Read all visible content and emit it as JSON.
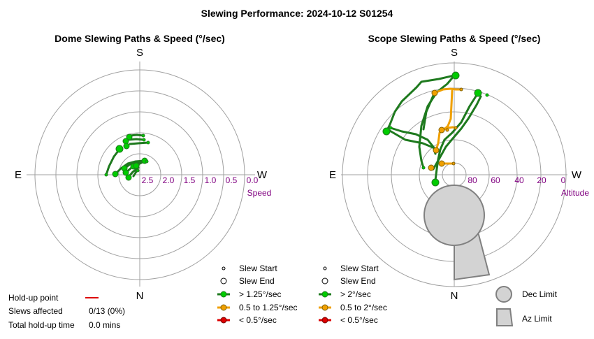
{
  "title": "Slewing Performance: 2024-10-12 S01254",
  "colors": {
    "ring": "#a0a0a0",
    "axis": "#a0a0a0",
    "fast": "#00cc00",
    "fast_line": "#1e7a1e",
    "medium": "#f0a000",
    "slow": "#dd0000",
    "scale": "#800080",
    "limit_fill": "#d3d3d3",
    "limit_stroke": "#808080"
  },
  "dome": {
    "title": "Dome Slewing Paths & Speed (°/sec)",
    "dir_top": "S",
    "dir_left": "E",
    "dir_right": "W",
    "dir_bottom": "N",
    "scale_labels": [
      "2.5",
      "2.0",
      "1.5",
      "1.0",
      "0.5",
      "0.0"
    ],
    "scale_title": "Speed",
    "legend": {
      "start": "Slew Start",
      "end": "Slew End",
      "fast": "> 1.25°/sec",
      "medium": "0.5 to 1.25°/sec",
      "slow": "< 0.5°/sec"
    }
  },
  "scope": {
    "title": "Scope Slewing Paths & Speed (°/sec)",
    "dir_top": "S",
    "dir_left": "E",
    "dir_right": "W",
    "dir_bottom": "N",
    "scale_labels": [
      "80",
      "60",
      "40",
      "20",
      "0"
    ],
    "scale_title": "Altitude",
    "legend": {
      "start": "Slew Start",
      "end": "Slew End",
      "fast": "> 2°/sec",
      "medium": "0.5 to 2°/sec",
      "slow": "< 0.5°/sec"
    },
    "limits": {
      "dec": "Dec Limit",
      "az": "Az Limit"
    }
  },
  "holdup": {
    "point_label": "Hold-up point",
    "affected_label": "Slews affected",
    "affected_value": "0/13 (0%)",
    "total_label": "Total hold-up time",
    "total_value": "0.0 mins"
  }
}
